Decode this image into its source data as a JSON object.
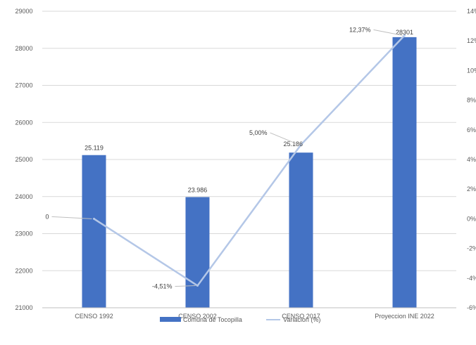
{
  "chart_data": {
    "type": "bar",
    "categories": [
      "CENSO 1992",
      "CENSO 2002",
      "CENSO 2017",
      "Proyeccion INE 2022"
    ],
    "series": [
      {
        "name": "Comuna de Tocopilla",
        "type": "bar",
        "axis": "left",
        "color": "#4472C4",
        "values": [
          25119,
          23986,
          25186,
          28301
        ],
        "data_labels": [
          "25.119",
          "23.986",
          "25.186",
          "28301"
        ]
      },
      {
        "name": "Variacion (%)",
        "type": "line",
        "axis": "right",
        "color": "#B4C7E7",
        "values": [
          0,
          -4.51,
          5.0,
          12.37
        ],
        "data_labels": [
          "0",
          "-4,51%",
          "5,00%",
          "12,37%"
        ]
      }
    ],
    "y_left": {
      "ylim": [
        21000,
        29000
      ],
      "ticks": [
        "21000",
        "22000",
        "23000",
        "24000",
        "25000",
        "26000",
        "27000",
        "28000",
        "29000"
      ]
    },
    "y_right": {
      "ylim": [
        -6,
        14
      ],
      "ticks": [
        "-6%",
        "-4%",
        "-2%",
        "0%",
        "2%",
        "4%",
        "6%",
        "8%",
        "10%",
        "12%",
        "14%"
      ]
    },
    "grid": true,
    "gridline_color": "#D9D9D9",
    "legend": "bottom",
    "title": "",
    "xlabel": "",
    "ylabel": ""
  }
}
